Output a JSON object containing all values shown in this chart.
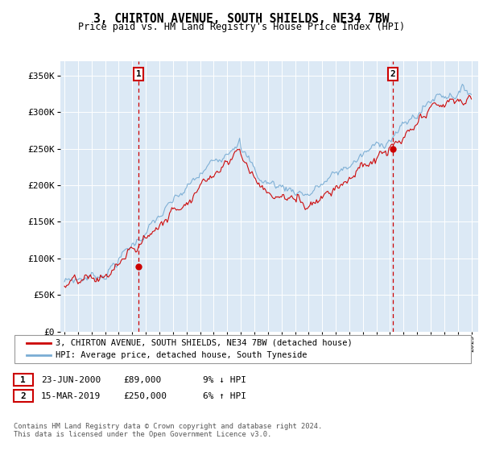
{
  "title": "3, CHIRTON AVENUE, SOUTH SHIELDS, NE34 7BW",
  "subtitle": "Price paid vs. HM Land Registry's House Price Index (HPI)",
  "plot_bg_color": "#dce9f5",
  "ylabel_ticks": [
    "£0",
    "£50K",
    "£100K",
    "£150K",
    "£200K",
    "£250K",
    "£300K",
    "£350K"
  ],
  "ytick_values": [
    0,
    50000,
    100000,
    150000,
    200000,
    250000,
    300000,
    350000
  ],
  "ylim": [
    0,
    370000
  ],
  "xlim_start": 1994.7,
  "xlim_end": 2025.5,
  "marker1_x": 2000.47,
  "marker1_y": 89000,
  "marker2_x": 2019.2,
  "marker2_y": 250000,
  "marker1_label": "1",
  "marker2_label": "2",
  "marker1_date": "23-JUN-2000",
  "marker1_price": "£89,000",
  "marker1_note": "9% ↓ HPI",
  "marker2_date": "15-MAR-2019",
  "marker2_price": "£250,000",
  "marker2_note": "6% ↑ HPI",
  "legend_line1": "3, CHIRTON AVENUE, SOUTH SHIELDS, NE34 7BW (detached house)",
  "legend_line2": "HPI: Average price, detached house, South Tyneside",
  "footer1": "Contains HM Land Registry data © Crown copyright and database right 2024.",
  "footer2": "This data is licensed under the Open Government Licence v3.0.",
  "line_color_red": "#cc0000",
  "line_color_blue": "#7aadd4",
  "grid_color": "#ffffff"
}
